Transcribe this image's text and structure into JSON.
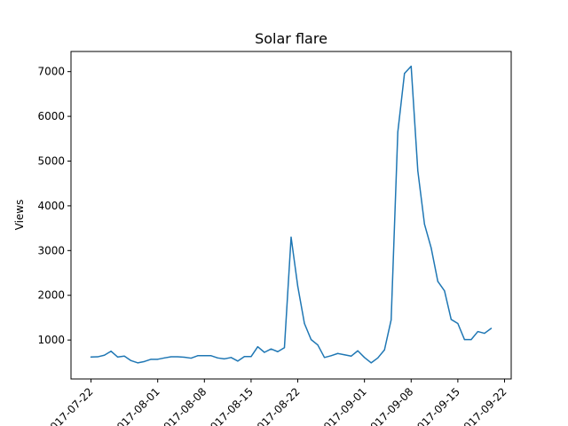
{
  "chart_data": {
    "type": "line",
    "title": "Solar flare",
    "xlabel": "",
    "ylabel": "Views",
    "x_tick_labels": [
      "2017-07-22",
      "2017-08-01",
      "2017-08-08",
      "2017-08-15",
      "2017-08-22",
      "2017-09-01",
      "2017-09-08",
      "2017-09-15",
      "2017-09-22"
    ],
    "y_tick_labels": [
      "1000",
      "2000",
      "3000",
      "4000",
      "5000",
      "6000",
      "7000"
    ],
    "x_range": [
      "2017-07-19",
      "2017-09-23"
    ],
    "ylim": [
      130,
      7450
    ],
    "grid": false,
    "series": [
      {
        "name": "",
        "color": "#1f77b4",
        "x": [
          "2017-07-22",
          "2017-07-23",
          "2017-07-24",
          "2017-07-25",
          "2017-07-26",
          "2017-07-27",
          "2017-07-28",
          "2017-07-29",
          "2017-07-30",
          "2017-07-31",
          "2017-08-01",
          "2017-08-02",
          "2017-08-03",
          "2017-08-04",
          "2017-08-05",
          "2017-08-06",
          "2017-08-07",
          "2017-08-08",
          "2017-08-09",
          "2017-08-10",
          "2017-08-11",
          "2017-08-12",
          "2017-08-13",
          "2017-08-14",
          "2017-08-15",
          "2017-08-16",
          "2017-08-17",
          "2017-08-18",
          "2017-08-19",
          "2017-08-20",
          "2017-08-21",
          "2017-08-22",
          "2017-08-23",
          "2017-08-24",
          "2017-08-25",
          "2017-08-26",
          "2017-08-27",
          "2017-08-28",
          "2017-08-29",
          "2017-08-30",
          "2017-08-31",
          "2017-09-01",
          "2017-09-02",
          "2017-09-03",
          "2017-09-04",
          "2017-09-05",
          "2017-09-06",
          "2017-09-07",
          "2017-09-08",
          "2017-09-09",
          "2017-09-10",
          "2017-09-11",
          "2017-09-12",
          "2017-09-13",
          "2017-09-14",
          "2017-09-15",
          "2017-09-16",
          "2017-09-17",
          "2017-09-18",
          "2017-09-19",
          "2017-09-20"
        ],
        "y": [
          620,
          625,
          660,
          750,
          620,
          640,
          540,
          490,
          520,
          570,
          570,
          600,
          625,
          625,
          615,
          595,
          650,
          650,
          650,
          600,
          580,
          610,
          530,
          630,
          630,
          850,
          725,
          800,
          740,
          830,
          3300,
          2200,
          1370,
          1010,
          890,
          610,
          650,
          700,
          670,
          640,
          760,
          610,
          490,
          600,
          780,
          1450,
          5650,
          6960,
          7120,
          4780,
          3590,
          3060,
          2310,
          2100,
          1460,
          1370,
          1010,
          1010,
          1190,
          1150,
          1260
        ]
      }
    ]
  }
}
